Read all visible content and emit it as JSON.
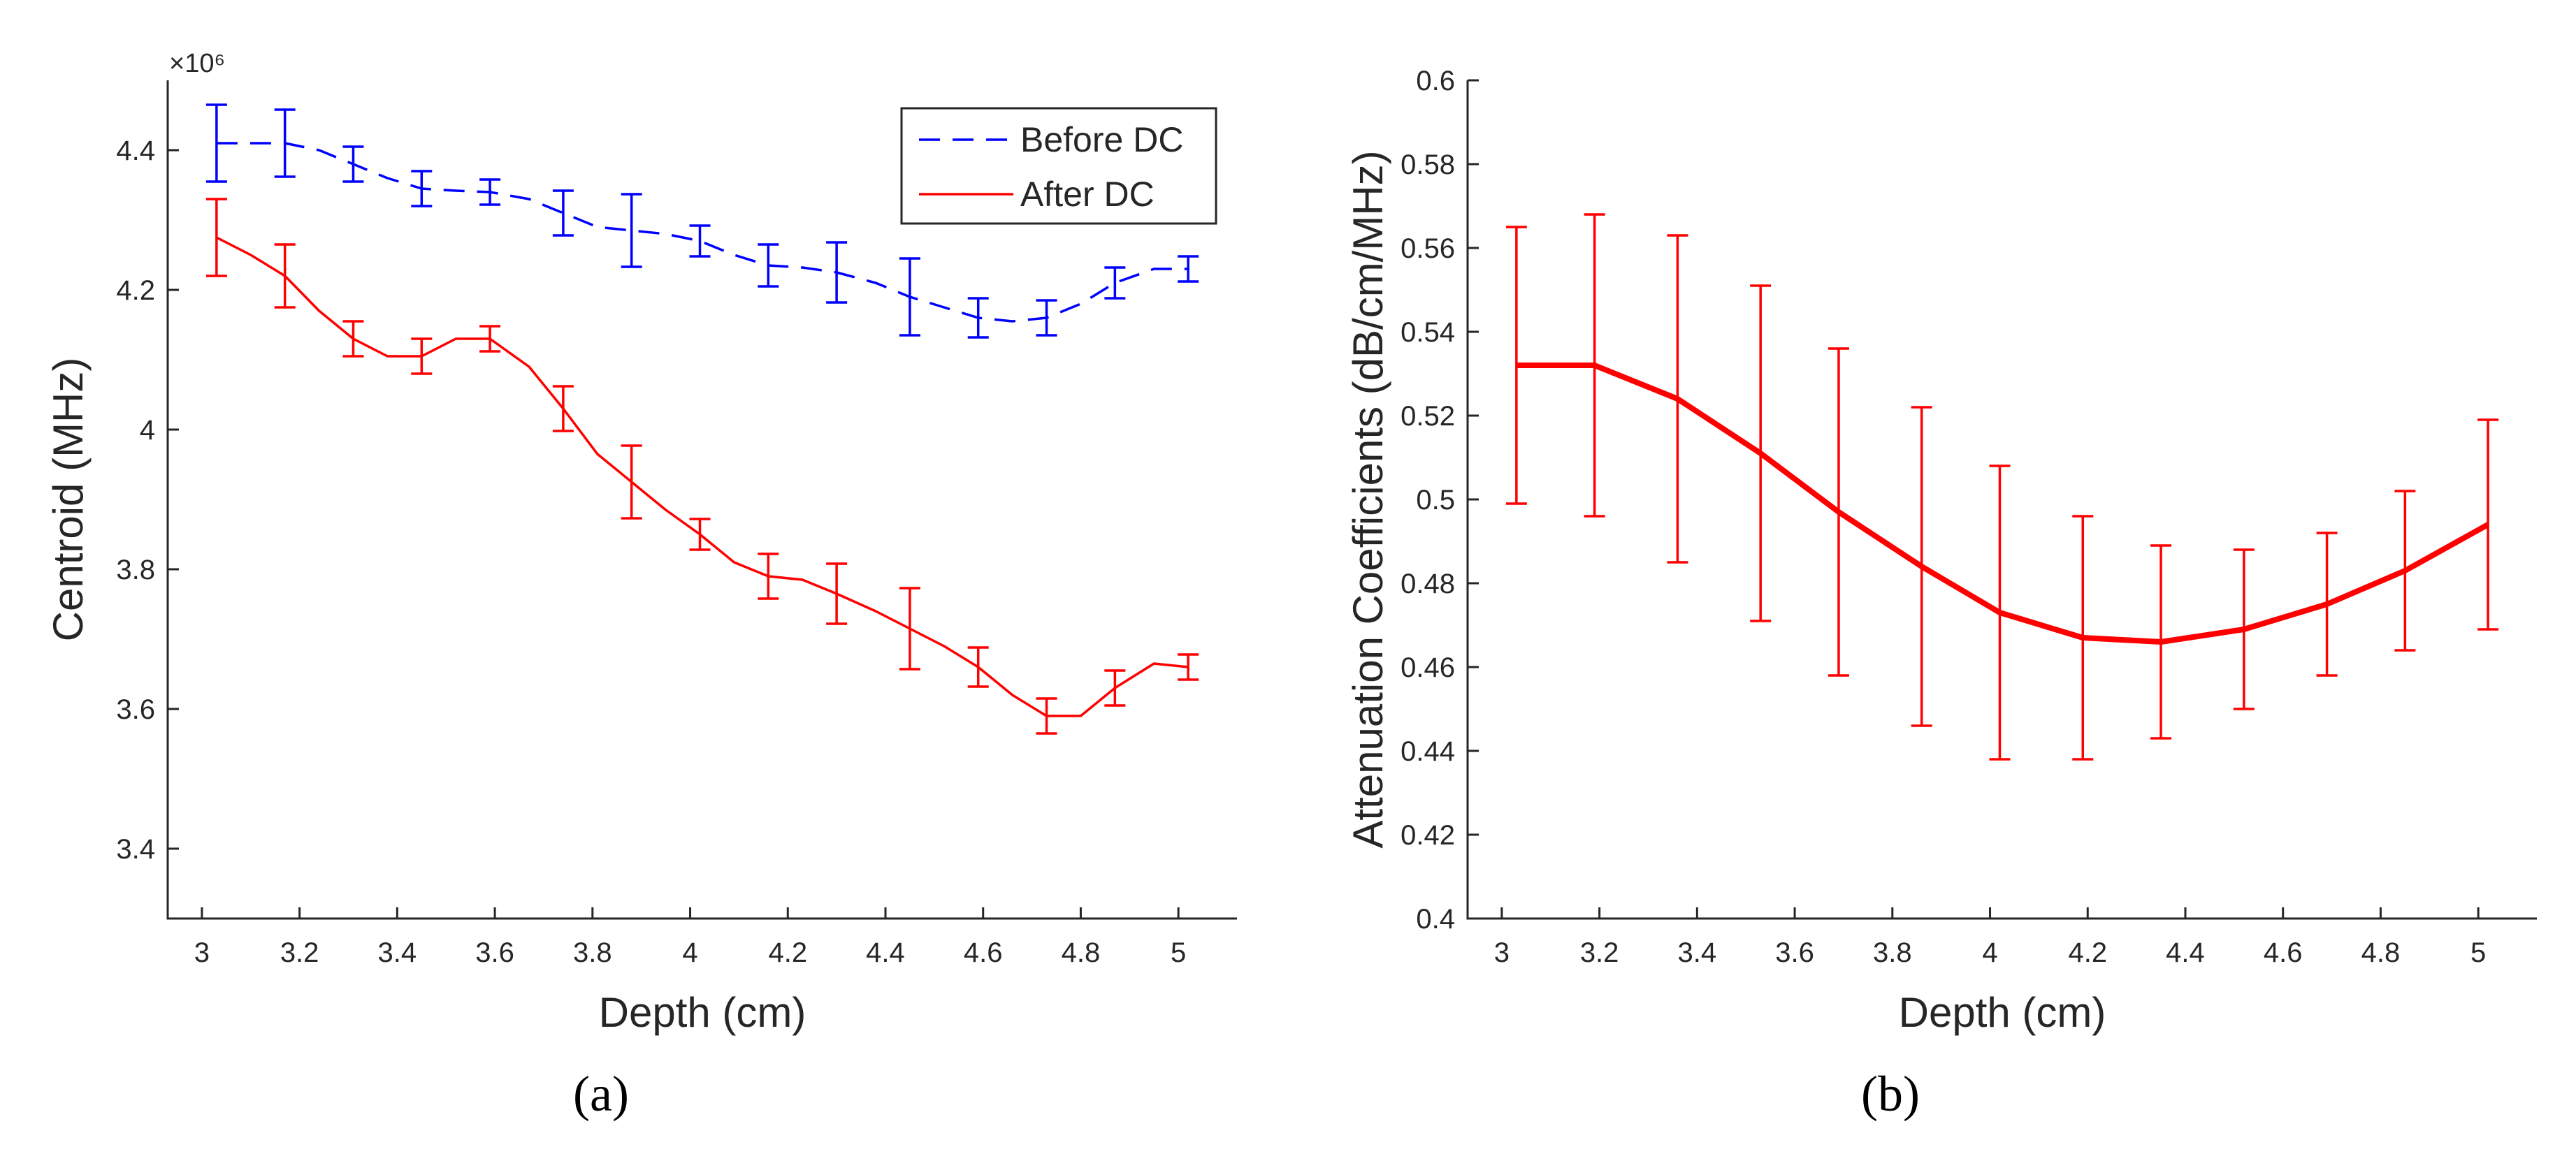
{
  "chart_data": [
    {
      "type": "line",
      "caption": "(a)",
      "xlabel": "Depth (cm)",
      "ylabel": "Centroid (MHz)",
      "y_multiplier": "×10⁶",
      "xlim": [
        2.93,
        5.12
      ],
      "ylim": [
        3.3,
        4.5
      ],
      "xticks": [
        "3",
        "3.2",
        "3.4",
        "3.6",
        "3.8",
        "4",
        "4.2",
        "4.4",
        "4.6",
        "4.8",
        "5"
      ],
      "yticks": [
        "3.4",
        "3.6",
        "3.8",
        "4",
        "4.2",
        "4.4"
      ],
      "legend_position": "top-right",
      "series": [
        {
          "name": "Before DC",
          "style": "dashed",
          "color": "#0000ff",
          "x": [
            3.03,
            3.17,
            3.31,
            3.45,
            3.59,
            3.74,
            3.88,
            4.02,
            4.16,
            4.3,
            4.45,
            4.59,
            4.73,
            4.87,
            5.02
          ],
          "y": [
            4.41,
            4.41,
            4.38,
            4.345,
            4.34,
            4.31,
            4.285,
            4.27,
            4.235,
            4.225,
            4.19,
            4.16,
            4.16,
            4.21,
            4.23
          ],
          "line_x": [
            3.03,
            3.17,
            3.24,
            3.31,
            3.38,
            3.45,
            3.52,
            3.59,
            3.67,
            3.74,
            3.81,
            3.88,
            3.95,
            4.02,
            4.09,
            4.16,
            4.23,
            4.3,
            4.38,
            4.45,
            4.52,
            4.59,
            4.66,
            4.73,
            4.8,
            4.87,
            4.95,
            5.02
          ],
          "line_y": [
            4.41,
            4.41,
            4.4,
            4.38,
            4.36,
            4.345,
            4.342,
            4.34,
            4.33,
            4.31,
            4.29,
            4.285,
            4.28,
            4.27,
            4.25,
            4.235,
            4.232,
            4.225,
            4.21,
            4.19,
            4.175,
            4.16,
            4.155,
            4.16,
            4.18,
            4.21,
            4.23,
            4.23
          ],
          "err": [
            0.055,
            0.048,
            0.025,
            0.025,
            0.018,
            0.032,
            0.052,
            0.022,
            0.03,
            0.043,
            0.055,
            0.028,
            0.025,
            0.022,
            0.018
          ]
        },
        {
          "name": "After DC",
          "style": "solid",
          "color": "#ff0000",
          "x": [
            3.03,
            3.17,
            3.31,
            3.45,
            3.59,
            3.74,
            3.88,
            4.02,
            4.16,
            4.3,
            4.45,
            4.59,
            4.73,
            4.87,
            5.02
          ],
          "y": [
            4.275,
            4.22,
            4.13,
            4.105,
            4.13,
            4.03,
            3.925,
            3.85,
            3.79,
            3.765,
            3.715,
            3.66,
            3.59,
            3.63,
            3.66
          ],
          "line_x": [
            3.03,
            3.1,
            3.17,
            3.24,
            3.31,
            3.38,
            3.45,
            3.52,
            3.59,
            3.67,
            3.74,
            3.81,
            3.88,
            3.95,
            4.02,
            4.09,
            4.16,
            4.23,
            4.3,
            4.38,
            4.45,
            4.52,
            4.59,
            4.66,
            4.73,
            4.8,
            4.87,
            4.95,
            5.02
          ],
          "line_y": [
            4.275,
            4.25,
            4.22,
            4.17,
            4.13,
            4.105,
            4.105,
            4.13,
            4.13,
            4.09,
            4.03,
            3.965,
            3.925,
            3.885,
            3.85,
            3.81,
            3.79,
            3.785,
            3.765,
            3.74,
            3.715,
            3.69,
            3.66,
            3.62,
            3.59,
            3.59,
            3.63,
            3.665,
            3.66
          ],
          "err": [
            0.055,
            0.045,
            0.025,
            0.025,
            0.018,
            0.032,
            0.052,
            0.022,
            0.032,
            0.043,
            0.058,
            0.028,
            0.025,
            0.025,
            0.018
          ]
        }
      ]
    },
    {
      "type": "line",
      "caption": "(b)",
      "xlabel": "Depth (cm)",
      "ylabel": "Attenuation Coefficients (dB/cm/MHz)",
      "xlim": [
        2.93,
        5.12
      ],
      "ylim": [
        0.4,
        0.6
      ],
      "xticks": [
        "3",
        "3.2",
        "3.4",
        "3.6",
        "3.8",
        "4",
        "4.2",
        "4.4",
        "4.6",
        "4.8",
        "5"
      ],
      "yticks": [
        "0.4",
        "0.42",
        "0.44",
        "0.46",
        "0.48",
        "0.5",
        "0.52",
        "0.54",
        "0.56",
        "0.58",
        "0.6"
      ],
      "series": [
        {
          "name": "Attenuation",
          "style": "solid-thick",
          "color": "#ff0000",
          "x": [
            3.03,
            3.19,
            3.36,
            3.53,
            3.69,
            3.86,
            4.02,
            4.19,
            4.35,
            4.52,
            4.69,
            4.85,
            5.02
          ],
          "y": [
            0.532,
            0.532,
            0.524,
            0.511,
            0.497,
            0.484,
            0.473,
            0.467,
            0.466,
            0.469,
            0.475,
            0.483,
            0.494
          ],
          "err": [
            0.033,
            0.036,
            0.039,
            0.04,
            0.039,
            0.038,
            0.035,
            0.029,
            0.023,
            0.019,
            0.017,
            0.019,
            0.025
          ]
        }
      ]
    }
  ]
}
